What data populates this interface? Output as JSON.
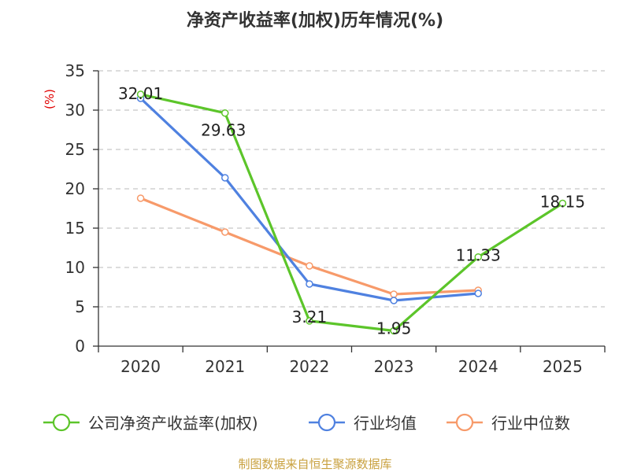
{
  "chart_data": {
    "type": "line",
    "title": "净资产收益率(加权)历年情况(%)",
    "ylabel_unit": "(%)",
    "categories": [
      "2020",
      "2021",
      "2022",
      "2023",
      "2024",
      "2025"
    ],
    "ylim": [
      0,
      35
    ],
    "yticks": [
      0,
      5,
      10,
      15,
      20,
      25,
      30,
      35
    ],
    "grid": true,
    "legend_position": "bottom",
    "series": [
      {
        "name": "公司净资产收益率(加权)",
        "color": "#5cc52a",
        "values": [
          32.01,
          29.63,
          3.21,
          1.95,
          11.33,
          18.15
        ],
        "labels": [
          "32.01",
          "29.63",
          "3.21",
          "1.95",
          "11.33",
          "18.15"
        ]
      },
      {
        "name": "行业均值",
        "color": "#4f81e0",
        "values": [
          31.5,
          21.4,
          7.9,
          5.8,
          6.7,
          null
        ]
      },
      {
        "name": "行业中位数",
        "color": "#f79a6a",
        "values": [
          18.8,
          14.5,
          10.2,
          6.6,
          7.1,
          null
        ]
      }
    ]
  },
  "source": "制图数据来自恒生聚源数据库"
}
